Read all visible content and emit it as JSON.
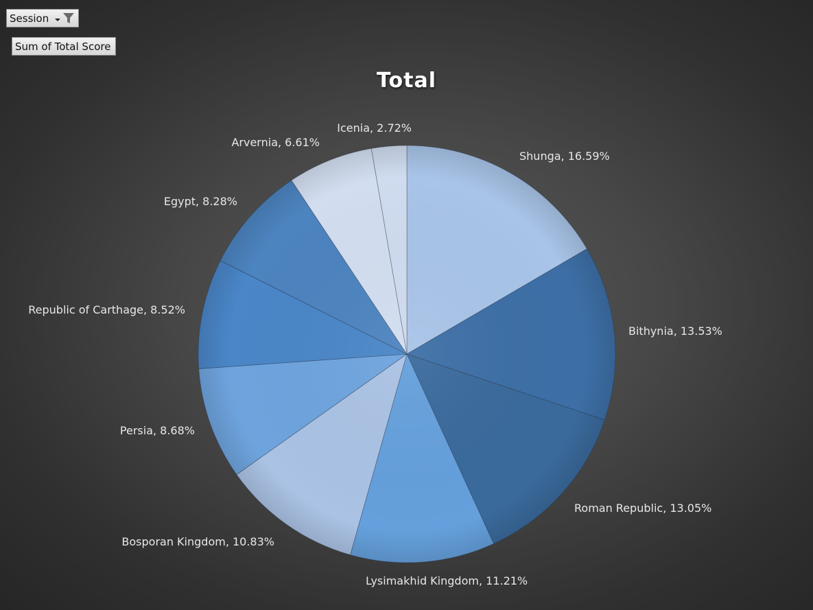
{
  "filter": {
    "label": "Session",
    "dropdown_icon": "dropdown-arrow-icon",
    "filter_icon": "funnel-filter-icon"
  },
  "value_field": {
    "label": "Sum of Total Score"
  },
  "chart_data": {
    "type": "pie",
    "title": "Total",
    "slices": [
      {
        "name": "Shunga",
        "label": "Shunga, 16.59%",
        "value": 16.59,
        "color": "#a8c4e8"
      },
      {
        "name": "Bithynia",
        "label": "Bithynia, 13.53%",
        "value": 13.53,
        "color": "#3d6fa6"
      },
      {
        "name": "Roman Republic",
        "label": "Roman Republic, 13.05%",
        "value": 13.05,
        "color": "#3a6a9c"
      },
      {
        "name": "Lysimakhid Kingdom",
        "label": "Lysimakhid Kingdom, 11.21%",
        "value": 11.21,
        "color": "#65a0dc"
      },
      {
        "name": "Bosporan Kingdom",
        "label": "Bosporan Kingdom, 10.83%",
        "value": 10.83,
        "color": "#aac2e4"
      },
      {
        "name": "Persia",
        "label": "Persia, 8.68%",
        "value": 8.68,
        "color": "#6ea4de"
      },
      {
        "name": "Republic of Carthage",
        "label": "Republic of Carthage, 8.52%",
        "value": 8.52,
        "color": "#4a86c8"
      },
      {
        "name": "Egypt",
        "label": "Egypt, 8.28%",
        "value": 8.28,
        "color": "#4c84c0"
      },
      {
        "name": "Arvernia",
        "label": "Arvernia, 6.61%",
        "value": 6.61,
        "color": "#d2def0"
      },
      {
        "name": "Icenia",
        "label": "Icenia, 2.72%",
        "value": 2.72,
        "color": "#cfdcef"
      }
    ]
  }
}
